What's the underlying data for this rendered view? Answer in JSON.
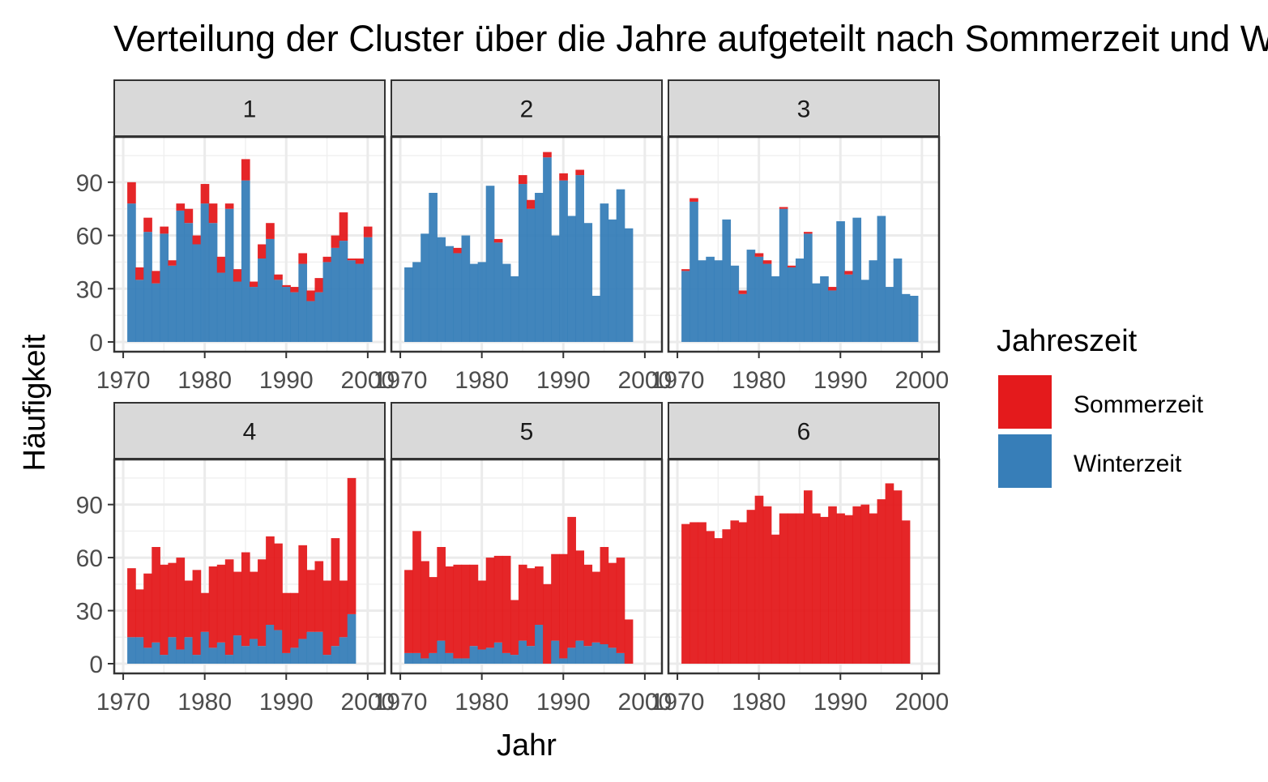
{
  "chart_data": {
    "type": "bar",
    "stacked": true,
    "title": "Verteilung der Cluster über die Jahre aufgeteilt nach Sommerzeit und Winterzeit",
    "xlabel": "Jahr",
    "ylabel": "Häufigkeit",
    "x": [
      1971,
      1972,
      1973,
      1974,
      1975,
      1976,
      1977,
      1978,
      1979,
      1980,
      1981,
      1982,
      1983,
      1984,
      1985,
      1986,
      1987,
      1988,
      1989,
      1990,
      1991,
      1992,
      1993,
      1994,
      1995,
      1996,
      1997,
      1998,
      1999,
      2000
    ],
    "xlim": [
      1970,
      2000
    ],
    "x_ticks": [
      1970,
      1980,
      1990,
      2000
    ],
    "ylim": [
      0,
      110
    ],
    "y_ticks": [
      0,
      30,
      60,
      90
    ],
    "grid": true,
    "legend_position": "right",
    "legend_title": "Jahreszeit",
    "legend": [
      {
        "name": "Sommerzeit",
        "color": "#e41a1c"
      },
      {
        "name": "Winterzeit",
        "color": "#377eb8"
      }
    ],
    "panels": [
      {
        "label": "1",
        "series": [
          {
            "name": "Winterzeit",
            "values": [
              78,
              35,
              62,
              33,
              61,
              43,
              74,
              67,
              55,
              78,
              67,
              39,
              75,
              34,
              91,
              31,
              47,
              58,
              35,
              31,
              28,
              44,
              23,
              28,
              45,
              53,
              57,
              46,
              44,
              59
            ]
          },
          {
            "name": "Sommerzeit",
            "values": [
              12,
              7,
              8,
              7,
              4,
              3,
              4,
              8,
              5,
              11,
              11,
              9,
              3,
              7,
              12,
              3,
              8,
              9,
              3,
              1,
              3,
              6,
              6,
              8,
              3,
              7,
              16,
              1,
              3,
              6
            ]
          }
        ]
      },
      {
        "label": "2",
        "series": [
          {
            "name": "Winterzeit",
            "values": [
              42,
              45,
              61,
              84,
              59,
              54,
              50,
              60,
              44,
              45,
              88,
              56,
              44,
              37,
              89,
              75,
              84,
              104,
              60,
              91,
              71,
              94,
              67,
              26,
              78,
              69,
              86,
              64,
              0,
              0
            ]
          },
          {
            "name": "Sommerzeit",
            "values": [
              0,
              0,
              0,
              0,
              0,
              0,
              3,
              0,
              0,
              0,
              0,
              2,
              0,
              0,
              5,
              5,
              0,
              3,
              0,
              4,
              0,
              3,
              0,
              0,
              0,
              0,
              0,
              0,
              0,
              0
            ]
          }
        ]
      },
      {
        "label": "3",
        "series": [
          {
            "name": "Winterzeit",
            "values": [
              40,
              79,
              46,
              48,
              46,
              69,
              43,
              27,
              52,
              48,
              44,
              37,
              75,
              42,
              47,
              61,
              33,
              37,
              29,
              68,
              38,
              70,
              35,
              46,
              71,
              31,
              47,
              27,
              26,
              0
            ]
          },
          {
            "name": "Sommerzeit",
            "values": [
              1,
              2,
              0,
              0,
              0,
              0,
              0,
              2,
              0,
              2,
              2,
              0,
              1,
              1,
              0,
              1,
              0,
              0,
              2,
              0,
              2,
              0,
              0,
              0,
              0,
              0,
              0,
              0,
              0,
              0
            ]
          }
        ]
      },
      {
        "label": "4",
        "series": [
          {
            "name": "Winterzeit",
            "values": [
              15,
              15,
              9,
              12,
              5,
              15,
              8,
              15,
              5,
              18,
              9,
              12,
              5,
              16,
              10,
              14,
              10,
              22,
              19,
              6,
              9,
              14,
              18,
              18,
              5,
              10,
              15,
              28,
              0,
              0
            ]
          },
          {
            "name": "Sommerzeit",
            "values": [
              39,
              27,
              42,
              54,
              51,
              42,
              52,
              32,
              48,
              22,
              46,
              44,
              54,
              36,
              53,
              38,
              49,
              50,
              49,
              34,
              31,
              53,
              35,
              40,
              42,
              61,
              32,
              77,
              0,
              0
            ]
          }
        ]
      },
      {
        "label": "5",
        "series": [
          {
            "name": "Winterzeit",
            "values": [
              6,
              6,
              3,
              6,
              13,
              6,
              3,
              3,
              10,
              8,
              9,
              12,
              6,
              5,
              13,
              10,
              22,
              0,
              13,
              3,
              9,
              13,
              10,
              12,
              11,
              9,
              6,
              0,
              0,
              0
            ]
          },
          {
            "name": "Sommerzeit",
            "values": [
              47,
              69,
              55,
              43,
              53,
              49,
              53,
              53,
              46,
              39,
              51,
              49,
              55,
              31,
              43,
              44,
              33,
              45,
              49,
              59,
              74,
              51,
              46,
              40,
              55,
              48,
              54,
              25,
              0,
              0
            ]
          }
        ]
      },
      {
        "label": "6",
        "series": [
          {
            "name": "Winterzeit",
            "values": [
              0,
              0,
              0,
              0,
              0,
              0,
              0,
              0,
              0,
              0,
              0,
              0,
              0,
              0,
              0,
              0,
              0,
              0,
              0,
              0,
              0,
              0,
              0,
              0,
              0,
              0,
              0,
              0,
              0,
              0
            ]
          },
          {
            "name": "Sommerzeit",
            "values": [
              79,
              80,
              80,
              75,
              71,
              76,
              81,
              80,
              87,
              95,
              89,
              73,
              85,
              85,
              85,
              98,
              85,
              83,
              89,
              85,
              84,
              89,
              90,
              85,
              93,
              102,
              98,
              81,
              0,
              0
            ]
          }
        ]
      }
    ]
  }
}
